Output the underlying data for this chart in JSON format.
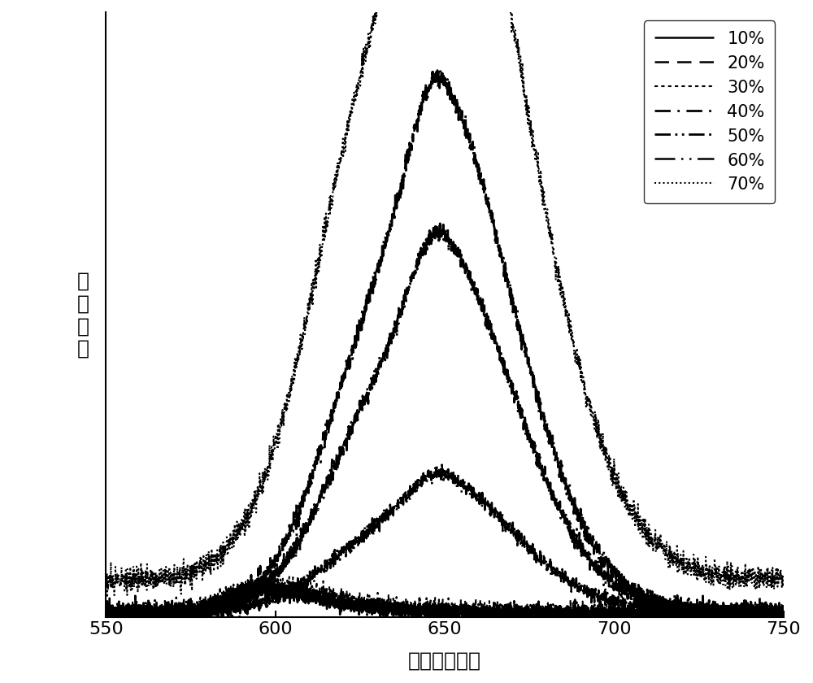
{
  "x_min": 550,
  "x_max": 750,
  "x_ticks": [
    550,
    600,
    650,
    700,
    750
  ],
  "xlabel": "波长（纳米）",
  "ylabel": "荧\n光\n强\n度",
  "background_color": "#ffffff",
  "ylim_max": 1.05,
  "series": [
    {
      "label": "10%",
      "linestyle": "solid",
      "linewidth": 1.8,
      "components": [
        {
          "peak": 595,
          "intensity": 0.04,
          "sigma_l": 10,
          "sigma_r": 18
        },
        {
          "peak": 635,
          "intensity": 0.005,
          "sigma_l": 20,
          "sigma_r": 35
        }
      ],
      "base": 0.005,
      "noise_amp": 0.006,
      "seed": 10
    },
    {
      "label": "20%",
      "linestyle": "dashed",
      "linewidth": 1.8,
      "components": [
        {
          "peak": 595,
          "intensity": 0.045,
          "sigma_l": 10,
          "sigma_r": 18
        },
        {
          "peak": 635,
          "intensity": 0.006,
          "sigma_l": 20,
          "sigma_r": 35
        }
      ],
      "base": 0.005,
      "noise_amp": 0.006,
      "seed": 20
    },
    {
      "label": "30%",
      "linestyle": "dotted",
      "linewidth": 1.5,
      "components": [
        {
          "peak": 595,
          "intensity": 0.05,
          "sigma_l": 10,
          "sigma_r": 18
        },
        {
          "peak": 635,
          "intensity": 0.008,
          "sigma_l": 20,
          "sigma_r": 35
        }
      ],
      "base": 0.008,
      "noise_amp": 0.007,
      "seed": 30
    },
    {
      "label": "40%",
      "linestyle": "dashdot",
      "linewidth": 2.0,
      "components": [
        {
          "peak": 634,
          "intensity": 0.54,
          "sigma_l": 18,
          "sigma_r": 28
        },
        {
          "peak": 650,
          "intensity": 0.46,
          "sigma_l": 10,
          "sigma_r": 22
        }
      ],
      "base": 0.01,
      "noise_amp": 0.008,
      "seed": 40
    },
    {
      "label": "50%",
      "linestyle": "dashdotdot",
      "linewidth": 2.0,
      "components": [
        {
          "peak": 634,
          "intensity": 0.38,
          "sigma_l": 18,
          "sigma_r": 28
        },
        {
          "peak": 650,
          "intensity": 0.33,
          "sigma_l": 10,
          "sigma_r": 22
        }
      ],
      "base": 0.01,
      "noise_amp": 0.007,
      "seed": 50
    },
    {
      "label": "60%",
      "linestyle": "longdashdot",
      "linewidth": 1.8,
      "components": [
        {
          "peak": 634,
          "intensity": 0.14,
          "sigma_l": 18,
          "sigma_r": 28
        },
        {
          "peak": 650,
          "intensity": 0.12,
          "sigma_l": 10,
          "sigma_r": 22
        }
      ],
      "base": 0.01,
      "noise_amp": 0.006,
      "seed": 60
    },
    {
      "label": "70%",
      "linestyle": "densedotted",
      "linewidth": 1.5,
      "components": [
        {
          "peak": 633,
          "intensity": 0.92,
          "sigma_l": 20,
          "sigma_r": 30
        },
        {
          "peak": 651,
          "intensity": 0.72,
          "sigma_l": 10,
          "sigma_r": 25
        }
      ],
      "base": 0.065,
      "noise_amp": 0.01,
      "seed": 70
    }
  ]
}
